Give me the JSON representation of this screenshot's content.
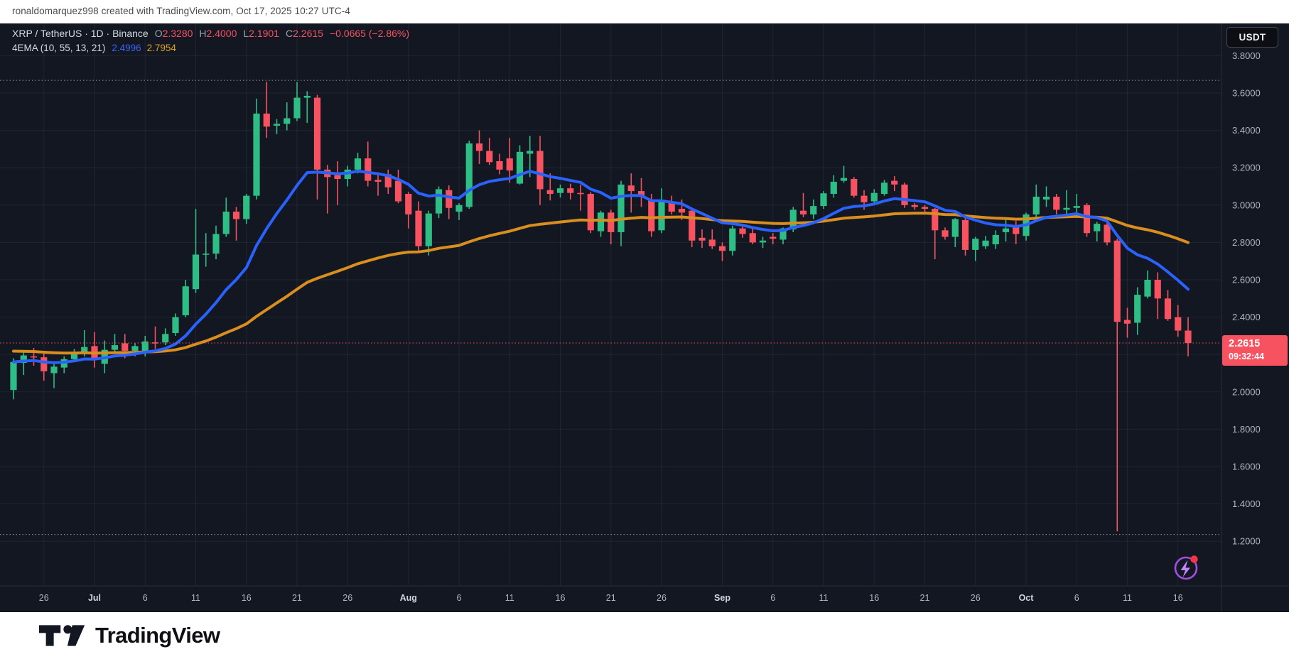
{
  "header": {
    "attribution": "ronaldomarquez998 created with TradingView.com, Oct 17, 2025 10:27 UTC-4"
  },
  "toolbar": {
    "currency_button": "USDT"
  },
  "legend": {
    "title": "XRP / TetherUS · 1D · Binance",
    "ohlc": [
      {
        "k": "O",
        "v": "2.3280"
      },
      {
        "k": "H",
        "v": "2.4000"
      },
      {
        "k": "L",
        "v": "2.1901"
      },
      {
        "k": "C",
        "v": "2.2615"
      }
    ],
    "change": "−0.0665 (−2.86%)",
    "indicator": {
      "label": "4EMA (10, 55, 13, 21)",
      "fast": "2.4996",
      "slow": "2.7954"
    }
  },
  "price_axis": {
    "labels": [
      {
        "text": "3.8000",
        "price": 3.8
      },
      {
        "text": "3.6000",
        "price": 3.6
      },
      {
        "text": "3.4000",
        "price": 3.4
      },
      {
        "text": "3.2000",
        "price": 3.2
      },
      {
        "text": "3.0000",
        "price": 3.0
      },
      {
        "text": "2.8000",
        "price": 2.8
      },
      {
        "text": "2.6000",
        "price": 2.6
      },
      {
        "text": "2.4000",
        "price": 2.4
      },
      {
        "text": "2.0000",
        "price": 2.0
      },
      {
        "text": "1.8000",
        "price": 1.8
      },
      {
        "text": "1.6000",
        "price": 1.6
      },
      {
        "text": "1.4000",
        "price": 1.4
      },
      {
        "text": "1.2000",
        "price": 1.2
      }
    ],
    "grid_prices": [
      3.8,
      3.6,
      3.4,
      3.2,
      3.0,
      2.8,
      2.6,
      2.4,
      2.2,
      2.0,
      1.8,
      1.6,
      1.4,
      1.2
    ],
    "current_price": "2.2615",
    "countdown": "09:32:44"
  },
  "time_axis": {
    "ticks": [
      {
        "label": "26",
        "day_index": 3,
        "month": false
      },
      {
        "label": "Jul",
        "day_index": 8,
        "month": true
      },
      {
        "label": "6",
        "day_index": 13,
        "month": false
      },
      {
        "label": "11",
        "day_index": 18,
        "month": false
      },
      {
        "label": "16",
        "day_index": 23,
        "month": false
      },
      {
        "label": "21",
        "day_index": 28,
        "month": false
      },
      {
        "label": "26",
        "day_index": 33,
        "month": false
      },
      {
        "label": "Aug",
        "day_index": 39,
        "month": true
      },
      {
        "label": "6",
        "day_index": 44,
        "month": false
      },
      {
        "label": "11",
        "day_index": 49,
        "month": false
      },
      {
        "label": "16",
        "day_index": 54,
        "month": false
      },
      {
        "label": "21",
        "day_index": 59,
        "month": false
      },
      {
        "label": "26",
        "day_index": 64,
        "month": false
      },
      {
        "label": "Sep",
        "day_index": 70,
        "month": true
      },
      {
        "label": "6",
        "day_index": 75,
        "month": false
      },
      {
        "label": "11",
        "day_index": 80,
        "month": false
      },
      {
        "label": "16",
        "day_index": 85,
        "month": false
      },
      {
        "label": "21",
        "day_index": 90,
        "month": false
      },
      {
        "label": "26",
        "day_index": 95,
        "month": false
      },
      {
        "label": "Oct",
        "day_index": 100,
        "month": true
      },
      {
        "label": "6",
        "day_index": 105,
        "month": false
      },
      {
        "label": "11",
        "day_index": 110,
        "month": false
      },
      {
        "label": "16",
        "day_index": 115,
        "month": false
      }
    ]
  },
  "price_lines": {
    "high_dotted": 3.668,
    "low_dotted": 1.2366,
    "current": 2.2615
  },
  "footer": {
    "brand": "TradingView"
  },
  "colors": {
    "background": "#131722",
    "axis_text": "#b2b5be",
    "month_text": "#d1d4dc",
    "grid": "rgba(150,160,190,0.10)",
    "separator": "#2a2e39",
    "up": "#2ebd85",
    "down": "#f7525f",
    "ema_fast": "#2962ff",
    "ema_slow": "#d98e1e",
    "dotted_line": "#a8aebb",
    "current_line": "#f7525f",
    "badge_bg": "#f7525f",
    "boost_ring": "#a04fe0",
    "boost_bolt": "#c084fc",
    "notification_dot": "#f23645"
  },
  "chart_data": {
    "type": "candlestick",
    "symbol": "XRP/USDT",
    "exchange": "Binance",
    "interval": "1D",
    "title": "XRP / TetherUS · 1D · Binance",
    "ylim": [
      1.15,
      3.85
    ],
    "grid": true,
    "start_date": "2025-06-23",
    "ohlc_last": {
      "open": 2.328,
      "high": 2.4,
      "low": 2.1901,
      "close": 2.2615,
      "change": -0.0665,
      "change_pct": -2.86
    },
    "indicators": [
      {
        "name": "EMA",
        "period": 13,
        "color_key": "ema_fast",
        "last_value": 2.4996
      },
      {
        "name": "EMA",
        "period": 55,
        "color_key": "ema_slow",
        "last_value": 2.7954,
        "history_seed": 2.22
      }
    ],
    "candles": [
      [
        "06-23",
        2.01,
        2.18,
        1.96,
        2.16
      ],
      [
        "06-24",
        2.155,
        2.22,
        2.09,
        2.195
      ],
      [
        "06-25",
        2.19,
        2.235,
        2.14,
        2.185
      ],
      [
        "06-26",
        2.185,
        2.21,
        2.06,
        2.11
      ],
      [
        "06-27",
        2.1,
        2.15,
        2.02,
        2.135
      ],
      [
        "06-28",
        2.13,
        2.19,
        2.1,
        2.175
      ],
      [
        "06-29",
        2.175,
        2.23,
        2.16,
        2.205
      ],
      [
        "06-30",
        2.205,
        2.33,
        2.19,
        2.24
      ],
      [
        "07-01",
        2.245,
        2.32,
        2.13,
        2.17
      ],
      [
        "07-02",
        2.15,
        2.275,
        2.1,
        2.225
      ],
      [
        "07-03",
        2.225,
        2.31,
        2.21,
        2.25
      ],
      [
        "07-04",
        2.26,
        2.31,
        2.18,
        2.22
      ],
      [
        "07-05",
        2.22,
        2.26,
        2.19,
        2.245
      ],
      [
        "07-06",
        2.21,
        2.3,
        2.19,
        2.27
      ],
      [
        "07-07",
        2.265,
        2.35,
        2.23,
        2.26
      ],
      [
        "07-08",
        2.265,
        2.34,
        2.25,
        2.31
      ],
      [
        "07-09",
        2.315,
        2.42,
        2.3,
        2.4
      ],
      [
        "07-10",
        2.41,
        2.6,
        2.4,
        2.565
      ],
      [
        "07-11",
        2.55,
        2.98,
        2.53,
        2.735
      ],
      [
        "07-12",
        2.735,
        2.85,
        2.67,
        2.74
      ],
      [
        "07-13",
        2.74,
        2.89,
        2.71,
        2.845
      ],
      [
        "07-14",
        2.845,
        3.04,
        2.83,
        2.965
      ],
      [
        "07-15",
        2.965,
        2.99,
        2.81,
        2.925
      ],
      [
        "07-16",
        2.925,
        3.06,
        2.9,
        3.05
      ],
      [
        "07-17",
        3.05,
        3.57,
        3.03,
        3.49
      ],
      [
        "07-18",
        3.49,
        3.66,
        3.36,
        3.42
      ],
      [
        "07-19",
        3.425,
        3.46,
        3.38,
        3.435
      ],
      [
        "07-20",
        3.435,
        3.55,
        3.4,
        3.465
      ],
      [
        "07-21",
        3.465,
        3.66,
        3.45,
        3.575
      ],
      [
        "07-22",
        3.575,
        3.61,
        3.44,
        3.585
      ],
      [
        "07-23",
        3.575,
        3.59,
        3.03,
        3.19
      ],
      [
        "07-24",
        3.19,
        3.215,
        2.955,
        3.15
      ],
      [
        "07-25",
        3.16,
        3.235,
        3.0,
        3.14
      ],
      [
        "07-26",
        3.14,
        3.21,
        3.1,
        3.19
      ],
      [
        "07-27",
        3.19,
        3.28,
        3.17,
        3.25
      ],
      [
        "07-28",
        3.25,
        3.34,
        3.1,
        3.13
      ],
      [
        "07-29",
        3.135,
        3.175,
        3.05,
        3.125
      ],
      [
        "07-30",
        3.165,
        3.19,
        3.06,
        3.095
      ],
      [
        "07-31",
        3.13,
        3.19,
        3.01,
        3.02
      ],
      [
        "08-01",
        3.06,
        3.07,
        2.875,
        2.95
      ],
      [
        "08-02",
        2.97,
        3.02,
        2.75,
        2.78
      ],
      [
        "08-03",
        2.78,
        2.97,
        2.73,
        2.955
      ],
      [
        "08-04",
        2.955,
        3.1,
        2.93,
        3.085
      ],
      [
        "08-05",
        3.08,
        3.105,
        2.925,
        2.985
      ],
      [
        "08-06",
        2.965,
        3.01,
        2.92,
        3.0
      ],
      [
        "08-07",
        2.99,
        3.345,
        2.98,
        3.33
      ],
      [
        "08-08",
        3.33,
        3.4,
        3.22,
        3.29
      ],
      [
        "08-09",
        3.29,
        3.36,
        3.215,
        3.23
      ],
      [
        "08-10",
        3.235,
        3.275,
        3.165,
        3.19
      ],
      [
        "08-11",
        3.25,
        3.36,
        3.12,
        3.185
      ],
      [
        "08-12",
        3.115,
        3.32,
        3.11,
        3.285
      ],
      [
        "08-13",
        3.275,
        3.37,
        3.15,
        3.29
      ],
      [
        "08-14",
        3.29,
        3.37,
        3.0,
        3.085
      ],
      [
        "08-15",
        3.08,
        3.17,
        3.025,
        3.06
      ],
      [
        "08-16",
        3.065,
        3.11,
        3.04,
        3.09
      ],
      [
        "08-17",
        3.09,
        3.115,
        3.03,
        3.065
      ],
      [
        "08-18",
        3.065,
        3.11,
        2.97,
        3.06
      ],
      [
        "08-19",
        3.06,
        3.07,
        2.85,
        2.865
      ],
      [
        "08-20",
        2.86,
        2.97,
        2.83,
        2.96
      ],
      [
        "08-21",
        2.96,
        2.975,
        2.79,
        2.855
      ],
      [
        "08-22",
        2.855,
        3.13,
        2.78,
        3.11
      ],
      [
        "08-23",
        3.105,
        3.17,
        2.96,
        3.075
      ],
      [
        "08-24",
        3.075,
        3.145,
        2.99,
        3.05
      ],
      [
        "08-25",
        3.03,
        3.06,
        2.83,
        2.86
      ],
      [
        "08-26",
        2.865,
        3.09,
        2.85,
        3.02
      ],
      [
        "08-27",
        3.02,
        3.05,
        2.95,
        2.965
      ],
      [
        "08-28",
        2.98,
        3.03,
        2.92,
        2.96
      ],
      [
        "08-29",
        2.97,
        2.98,
        2.775,
        2.81
      ],
      [
        "08-30",
        2.825,
        2.87,
        2.77,
        2.81
      ],
      [
        "08-31",
        2.815,
        2.87,
        2.765,
        2.78
      ],
      [
        "09-01",
        2.78,
        2.8,
        2.7,
        2.755
      ],
      [
        "09-02",
        2.755,
        2.89,
        2.73,
        2.875
      ],
      [
        "09-03",
        2.875,
        2.9,
        2.825,
        2.845
      ],
      [
        "09-04",
        2.85,
        2.875,
        2.79,
        2.8
      ],
      [
        "09-05",
        2.8,
        2.83,
        2.77,
        2.81
      ],
      [
        "09-06",
        2.83,
        2.85,
        2.79,
        2.82
      ],
      [
        "09-07",
        2.815,
        2.88,
        2.79,
        2.875
      ],
      [
        "09-08",
        2.87,
        2.99,
        2.855,
        2.975
      ],
      [
        "09-09",
        2.97,
        3.065,
        2.935,
        2.95
      ],
      [
        "09-10",
        2.95,
        3.03,
        2.925,
        2.995
      ],
      [
        "09-11",
        2.995,
        3.075,
        2.98,
        3.063
      ],
      [
        "09-12",
        3.06,
        3.16,
        3.04,
        3.125
      ],
      [
        "09-13",
        3.13,
        3.21,
        3.12,
        3.145
      ],
      [
        "09-14",
        3.14,
        3.15,
        3.04,
        3.05
      ],
      [
        "09-15",
        3.05,
        3.08,
        2.975,
        3.015
      ],
      [
        "09-16",
        3.02,
        3.085,
        3.0,
        3.065
      ],
      [
        "09-17",
        3.06,
        3.135,
        3.05,
        3.12
      ],
      [
        "09-18",
        3.13,
        3.155,
        3.075,
        3.11
      ],
      [
        "09-19",
        3.11,
        3.12,
        2.985,
        3.0
      ],
      [
        "09-20",
        3.0,
        3.01,
        2.975,
        2.99
      ],
      [
        "09-21",
        2.99,
        3.0,
        2.965,
        2.98
      ],
      [
        "09-22",
        2.98,
        2.985,
        2.71,
        2.865
      ],
      [
        "09-23",
        2.865,
        2.88,
        2.815,
        2.83
      ],
      [
        "09-24",
        2.83,
        2.93,
        2.775,
        2.925
      ],
      [
        "09-25",
        2.92,
        2.93,
        2.73,
        2.76
      ],
      [
        "09-26",
        2.76,
        2.83,
        2.7,
        2.82
      ],
      [
        "09-27",
        2.78,
        2.835,
        2.765,
        2.81
      ],
      [
        "09-28",
        2.79,
        2.865,
        2.765,
        2.84
      ],
      [
        "09-29",
        2.855,
        2.92,
        2.805,
        2.875
      ],
      [
        "09-30",
        2.885,
        2.915,
        2.79,
        2.845
      ],
      [
        "10-01",
        2.835,
        2.96,
        2.81,
        2.95
      ],
      [
        "10-02",
        2.95,
        3.11,
        2.935,
        3.045
      ],
      [
        "10-03",
        3.03,
        3.1,
        2.99,
        3.045
      ],
      [
        "10-04",
        3.045,
        3.06,
        2.95,
        2.975
      ],
      [
        "10-05",
        2.975,
        3.08,
        2.95,
        2.985
      ],
      [
        "10-06",
        2.985,
        3.06,
        2.95,
        2.995
      ],
      [
        "10-07",
        3.0,
        3.01,
        2.83,
        2.85
      ],
      [
        "10-08",
        2.86,
        2.91,
        2.805,
        2.9
      ],
      [
        "10-09",
        2.895,
        2.91,
        2.785,
        2.8
      ],
      [
        "10-10",
        2.81,
        2.82,
        1.253,
        2.375
      ],
      [
        "10-11",
        2.385,
        2.45,
        2.29,
        2.365
      ],
      [
        "10-12",
        2.37,
        2.56,
        2.305,
        2.52
      ],
      [
        "10-13",
        2.51,
        2.65,
        2.5,
        2.6
      ],
      [
        "10-14",
        2.6,
        2.64,
        2.39,
        2.5
      ],
      [
        "10-15",
        2.5,
        2.545,
        2.38,
        2.39
      ],
      [
        "10-16",
        2.4,
        2.465,
        2.295,
        2.328
      ],
      [
        "10-17",
        2.328,
        2.4,
        2.1901,
        2.2615
      ]
    ]
  }
}
